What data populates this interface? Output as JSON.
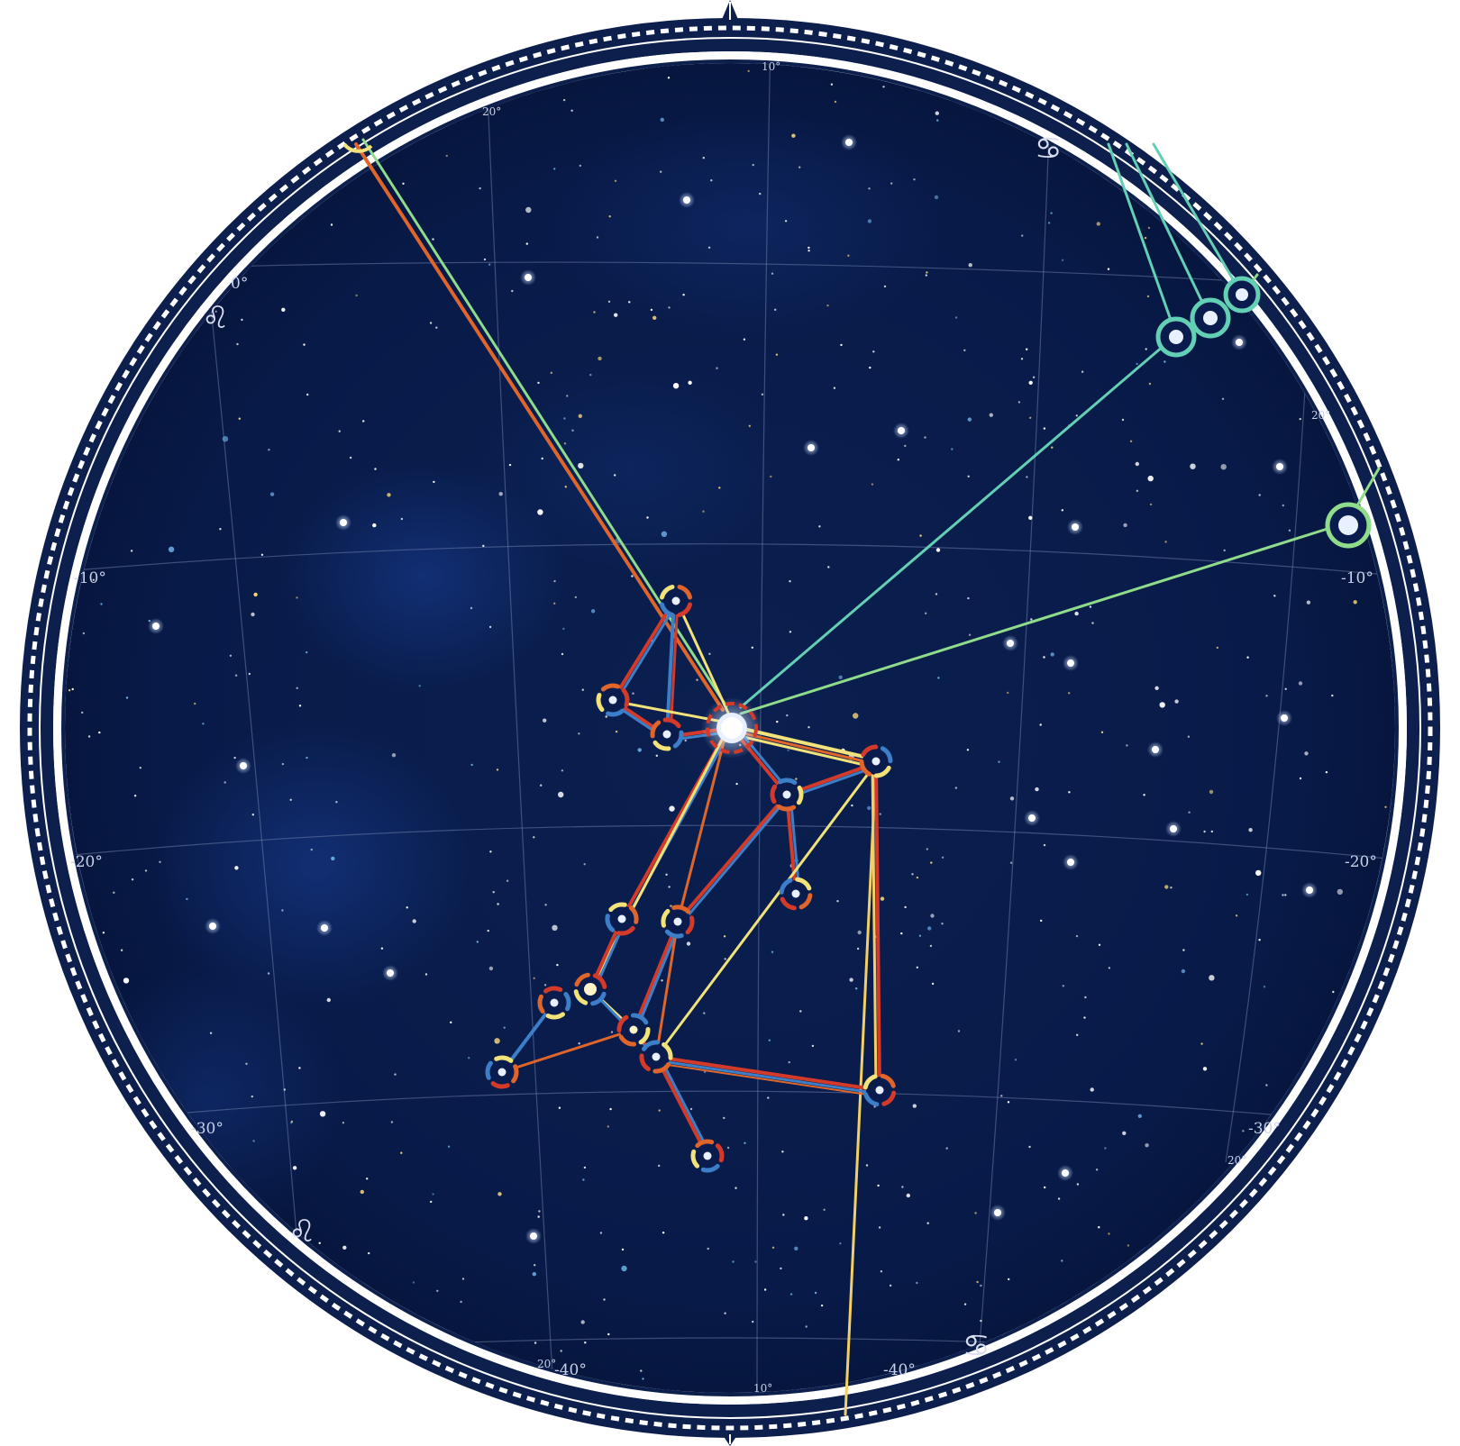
{
  "degree_labels": {
    "dec_0": "0°",
    "dec_m10": "-10°",
    "dec_m20": "-20°",
    "dec_m30": "-30°",
    "dec_m40": "-40°",
    "ra_10": "10°",
    "ra_20": "20°"
  },
  "zodiac_symbols": {
    "leo": "♌",
    "cancer": "♋"
  },
  "colors": {
    "sky": "#0a1c4d",
    "bezel": "#0d1f4d",
    "red": "#d43a2a",
    "blue": "#3c7fc8",
    "yellow": "#f2e27a",
    "orange": "#e0652a",
    "teal": "#63cfb4",
    "green": "#8fdc8a"
  },
  "icons": [
    "north-pointer-icon",
    "south-pointer-icon",
    "leo-symbol-icon",
    "cancer-symbol-icon"
  ]
}
